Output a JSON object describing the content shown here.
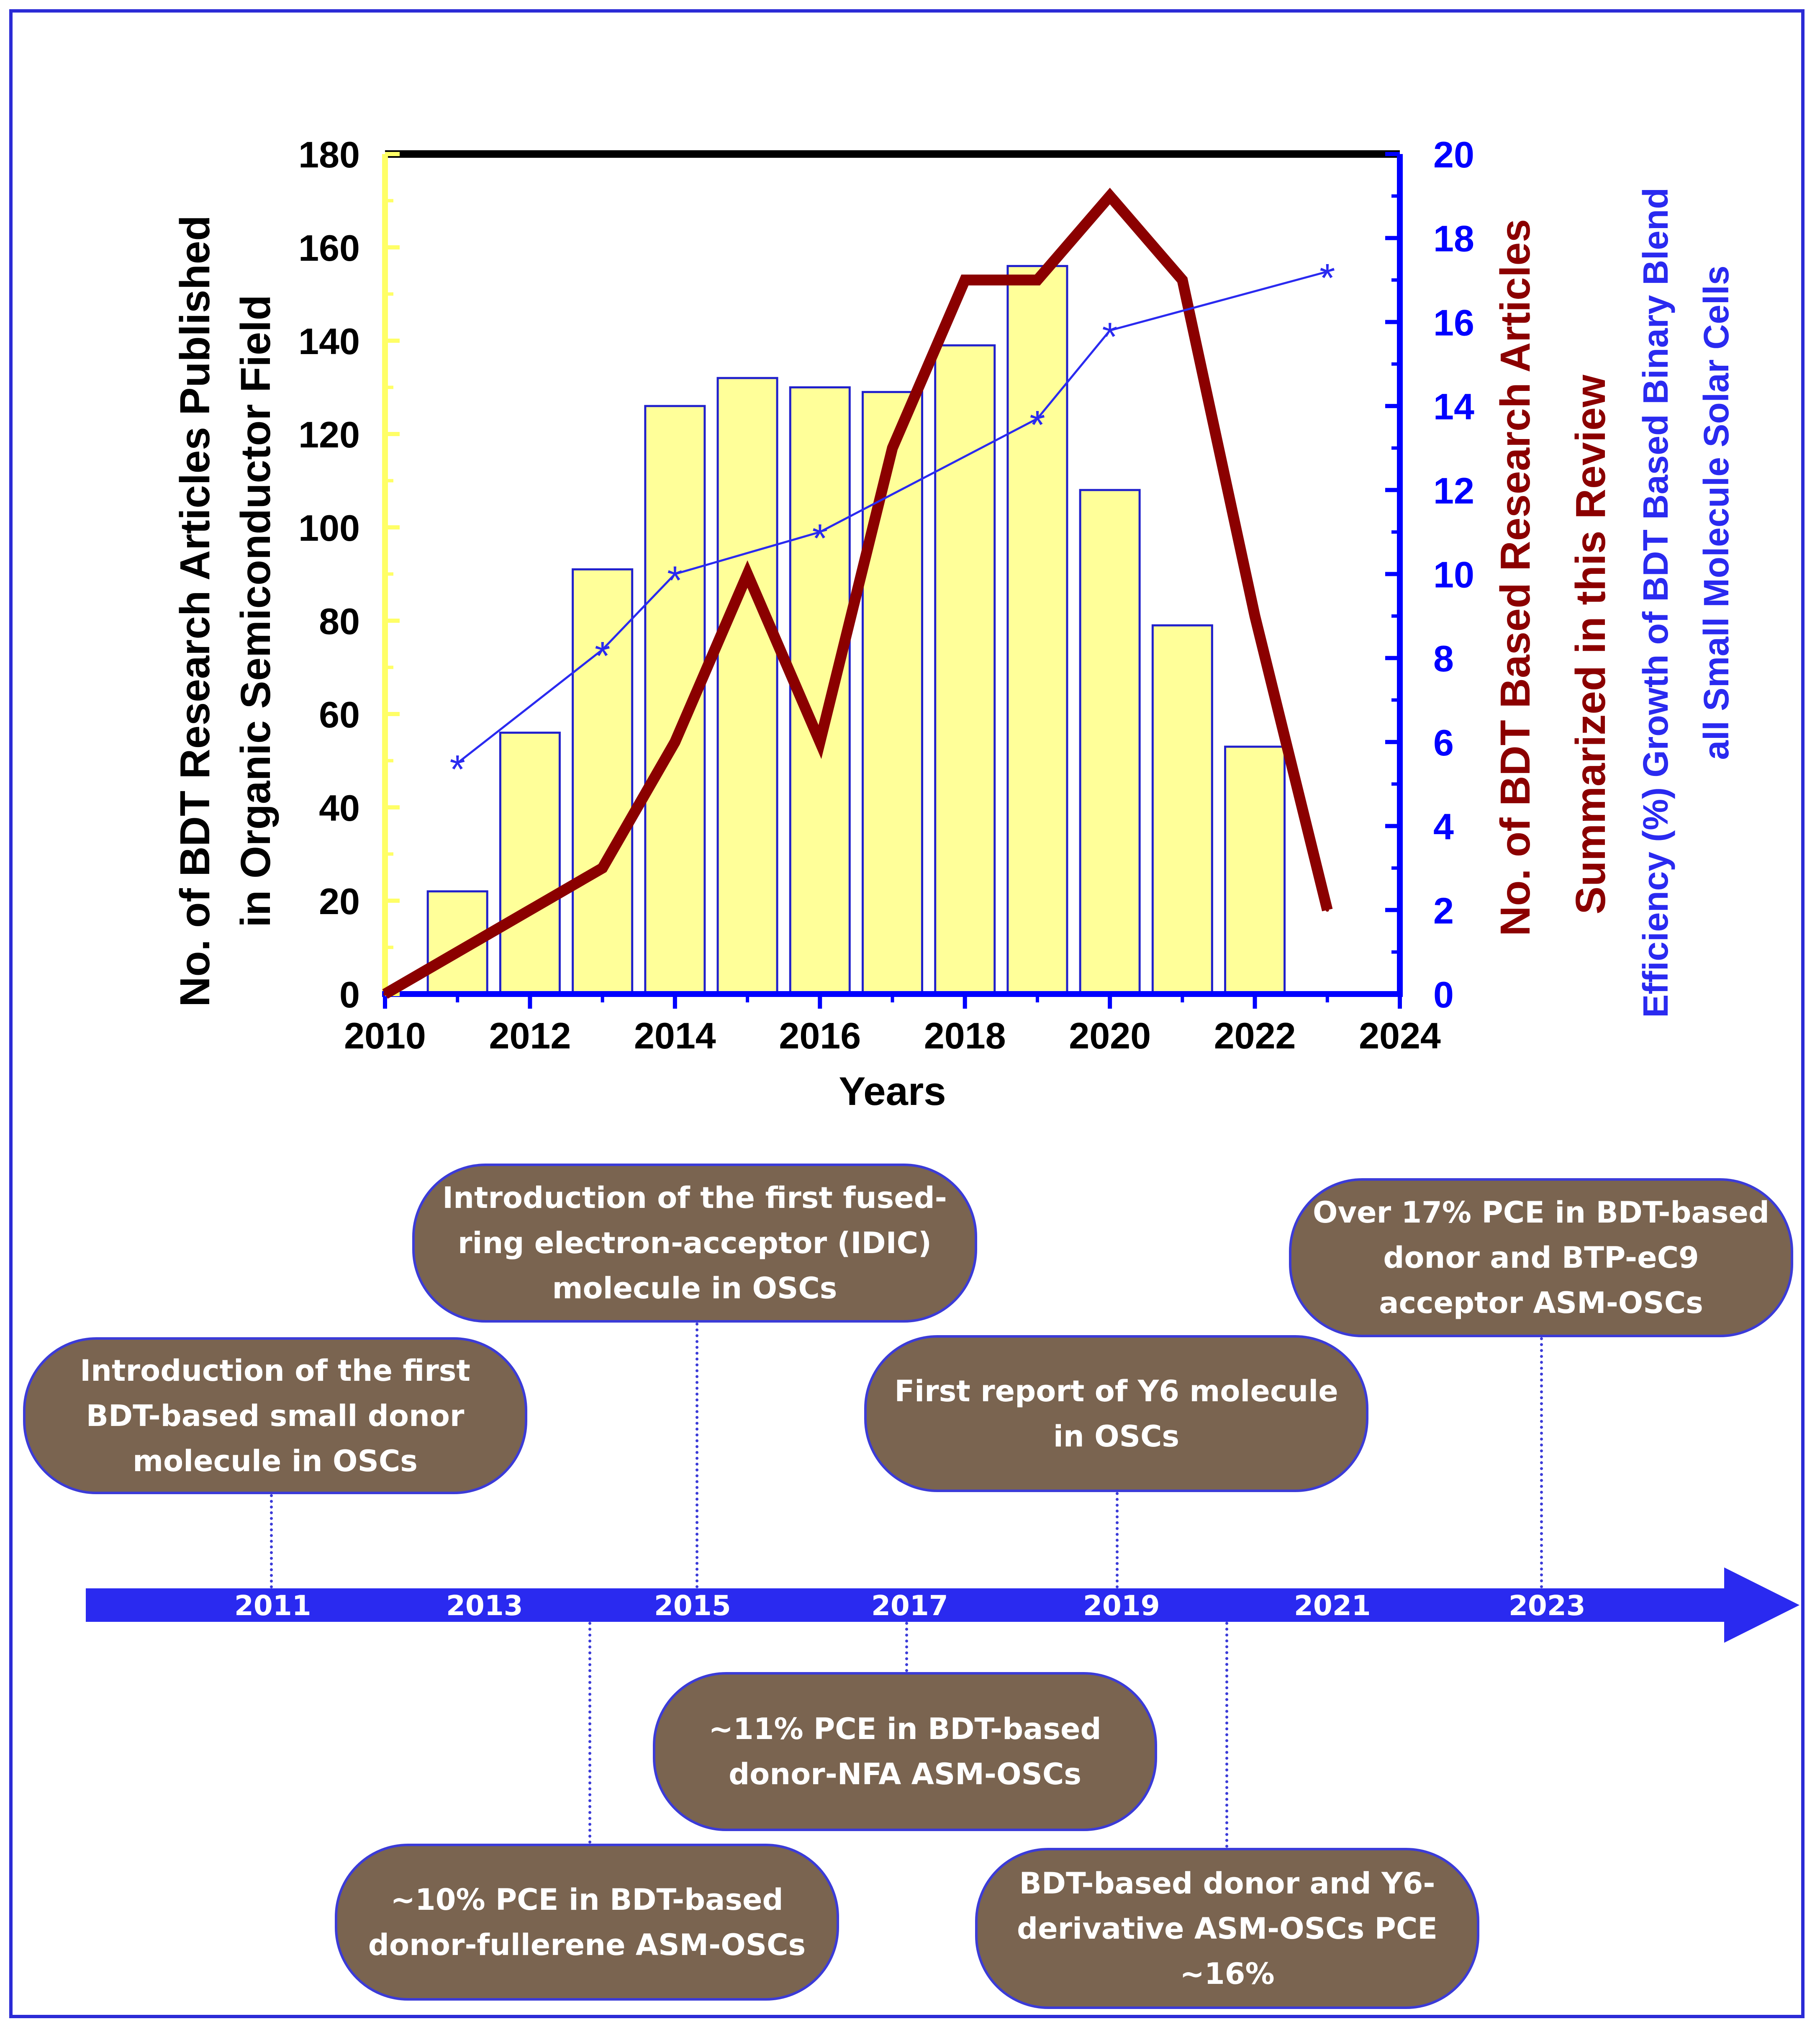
{
  "chart_data": {
    "type": "bar+line",
    "xlabel": "Years",
    "x_ticks": [
      "2010",
      "2012",
      "2014",
      "2016",
      "2018",
      "2020",
      "2022",
      "2024"
    ],
    "xlim": [
      2010,
      2024
    ],
    "left_axis": {
      "label_line1": "No. of BDT Research Articles Published",
      "label_line2": "in Organic Semiconductor Field",
      "ylim": [
        0,
        180
      ],
      "ticks": [
        "0",
        "20",
        "40",
        "60",
        "80",
        "100",
        "120",
        "140",
        "160",
        "180"
      ]
    },
    "right_axis": {
      "ylim": [
        0,
        20
      ],
      "ticks": [
        "0",
        "2",
        "4",
        "6",
        "8",
        "10",
        "12",
        "14",
        "16",
        "18",
        "20"
      ],
      "label_red": "No. of BDT Based Research Articles",
      "label_red2": "Summarized in this Review",
      "label_blue1": "Efficiency (%) Growth of BDT Based Binary Blend",
      "label_blue2": "all Small Molecule Solar Cells"
    },
    "series": [
      {
        "name": "No. of BDT Research Articles Published in Organic Semiconductor Field",
        "kind": "bar",
        "axis": "left",
        "x": [
          2011,
          2012,
          2013,
          2014,
          2015,
          2016,
          2017,
          2018,
          2019,
          2020,
          2021,
          2022
        ],
        "values": [
          22,
          56,
          91,
          126,
          132,
          130,
          129,
          139,
          156,
          108,
          79,
          53
        ]
      },
      {
        "name": "No. of BDT Based Research Articles Summarized in this Review",
        "kind": "line",
        "axis": "right",
        "x": [
          2010,
          2011,
          2012,
          2013,
          2014,
          2015,
          2016,
          2017,
          2018,
          2019,
          2020,
          2021,
          2022,
          2023
        ],
        "values": [
          0,
          1,
          2,
          3,
          6,
          10,
          6,
          13,
          17,
          17,
          19,
          17,
          9,
          2
        ]
      },
      {
        "name": "Efficiency (%) Growth of BDT Based Binary Blend all Small Molecule Solar Cells",
        "kind": "line-marker",
        "axis": "right",
        "x": [
          2011,
          2013,
          2014,
          2016,
          2019,
          2020,
          2023
        ],
        "values": [
          5.5,
          8.2,
          10.0,
          11.0,
          13.7,
          15.8,
          17.2
        ]
      }
    ],
    "colors": {
      "bar_fill": "#ffff99",
      "bar_stroke": "#2020cc",
      "red_line": "#8b0000",
      "blue_line": "#2a2af0",
      "left_axis": "#ffff66",
      "right_axis": "#0000ff",
      "top_border": "#000000"
    }
  },
  "timeline": {
    "years": [
      "2011",
      "2013",
      "2015",
      "2017",
      "2019",
      "2021",
      "2023"
    ],
    "arrow_color": "#2a2af0",
    "events": [
      {
        "text": "Introduction of the first BDT-based small donor molecule in OSCs"
      },
      {
        "text": "Introduction of the first fused-ring electron-acceptor (IDIC) molecule in OSCs"
      },
      {
        "text": "First report of Y6 molecule in OSCs"
      },
      {
        "text": "Over 17% PCE in BDT-based donor and BTP-eC9 acceptor ASM-OSCs"
      },
      {
        "text": "~10% PCE in BDT-based donor-fullerene ASM-OSCs"
      },
      {
        "text": "~11% PCE in BDT-based donor-NFA ASM-OSCs"
      },
      {
        "text": "BDT-based donor and Y6-derivative ASM-OSCs PCE ~16%"
      }
    ]
  }
}
